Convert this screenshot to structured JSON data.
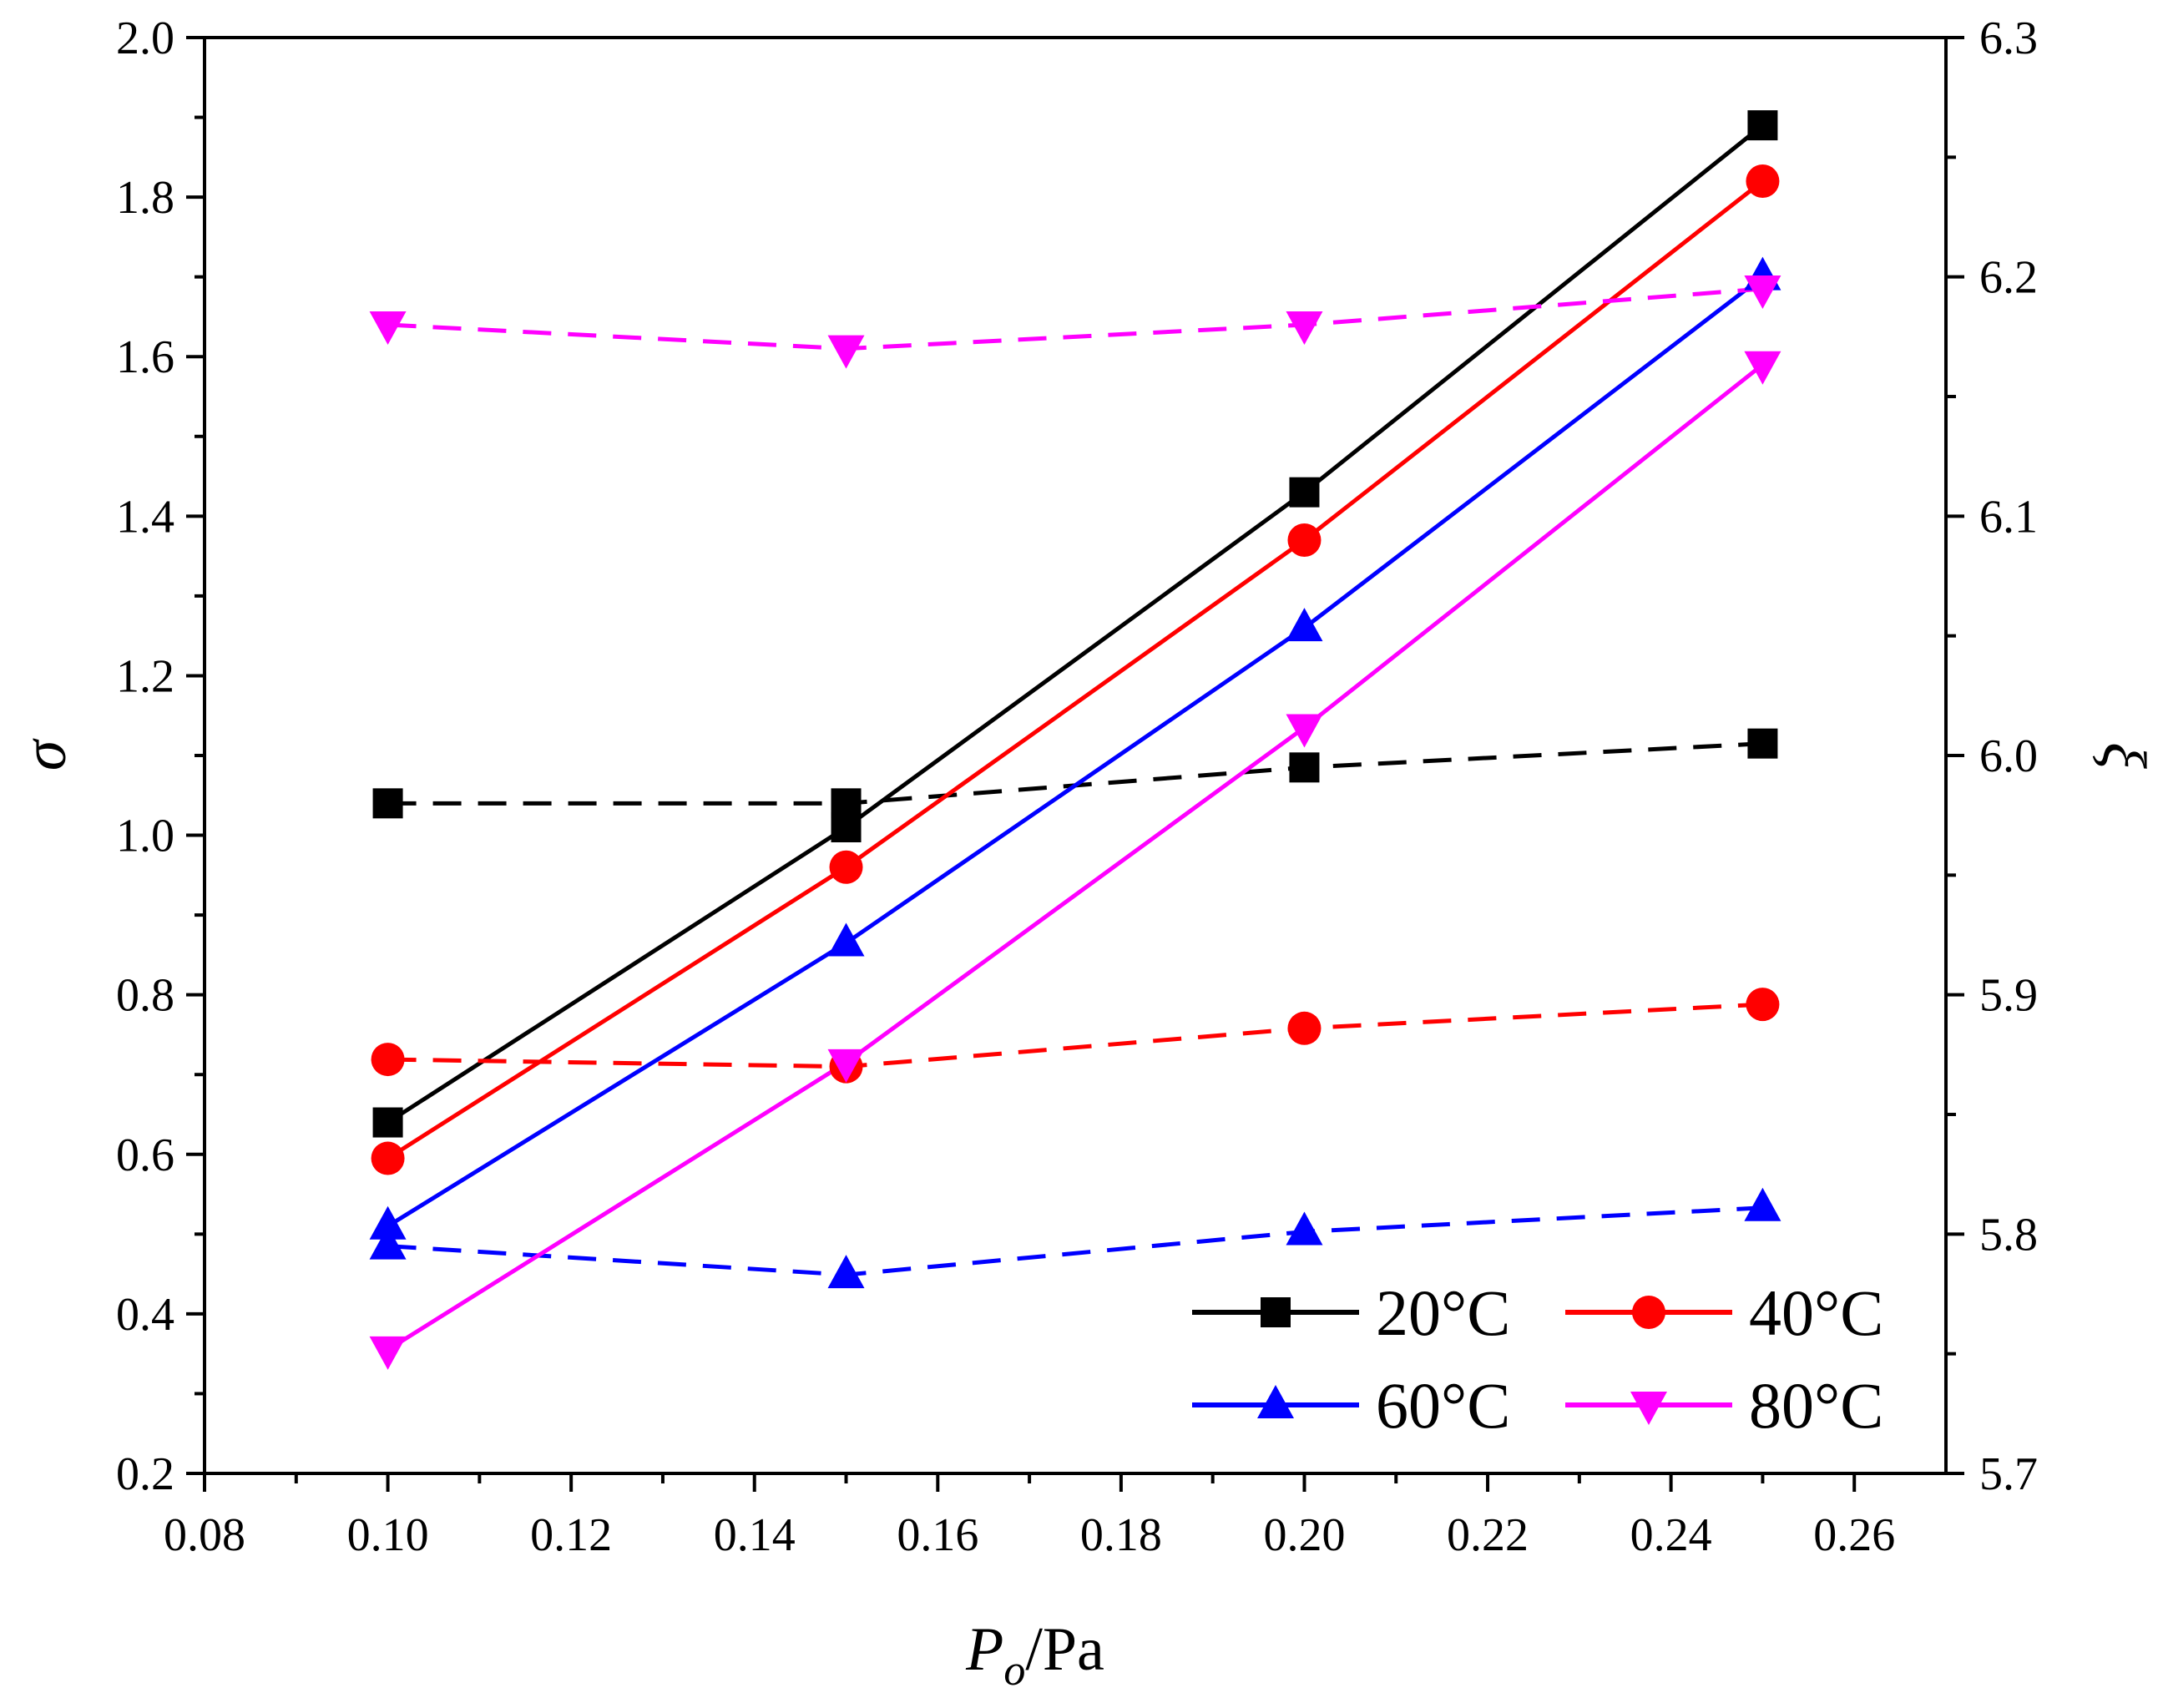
{
  "chart_data": {
    "type": "line",
    "x": [
      0.1,
      0.15,
      0.2,
      0.25
    ],
    "xlim": [
      0.08,
      0.27
    ],
    "x_ticks": [
      "0.08",
      "0.10",
      "0.12",
      "0.14",
      "0.16",
      "0.18",
      "0.20",
      "0.22",
      "0.24",
      "0.26"
    ],
    "x_tick_values": [
      0.08,
      0.1,
      0.12,
      0.14,
      0.16,
      0.18,
      0.2,
      0.22,
      0.24,
      0.26
    ],
    "xlabel_main": "P",
    "xlabel_sub": "o",
    "xlabel_rest": "/Pa",
    "y_left": {
      "label": "σ",
      "lim": [
        0.2,
        2.0
      ],
      "ticks": [
        "0.2",
        "0.4",
        "0.6",
        "0.8",
        "1.0",
        "1.2",
        "1.4",
        "1.6",
        "1.8",
        "2.0"
      ],
      "tick_values": [
        0.2,
        0.4,
        0.6,
        0.8,
        1.0,
        1.2,
        1.4,
        1.6,
        1.8,
        2.0
      ]
    },
    "y_right": {
      "label": "ξ",
      "lim": [
        5.7,
        6.3
      ],
      "ticks": [
        "5.7",
        "5.8",
        "5.9",
        "6.0",
        "6.1",
        "6.2",
        "6.3"
      ],
      "tick_values": [
        5.7,
        5.8,
        5.9,
        6.0,
        6.1,
        6.2,
        6.3
      ]
    },
    "grid": false,
    "legend_position": "bottom-right",
    "series": [
      {
        "name": "20°C",
        "color": "#000000",
        "marker": "square",
        "sigma": [
          0.64,
          1.01,
          1.43,
          1.89
        ],
        "xi": [
          5.98,
          5.98,
          5.995,
          6.005
        ]
      },
      {
        "name": "40°C",
        "color": "#ff0000",
        "marker": "circle",
        "sigma": [
          0.595,
          0.96,
          1.37,
          1.82
        ],
        "xi": [
          5.873,
          5.87,
          5.886,
          5.896
        ]
      },
      {
        "name": "60°C",
        "color": "#0000ff",
        "marker": "triangle-up",
        "sigma": [
          0.51,
          0.865,
          1.26,
          1.7
        ],
        "xi": [
          5.795,
          5.783,
          5.801,
          5.811
        ]
      },
      {
        "name": "80°C",
        "color": "#ff00ff",
        "marker": "triangle-down",
        "sigma": [
          0.355,
          0.715,
          1.135,
          1.59
        ],
        "xi": [
          6.18,
          6.17,
          6.18,
          6.195
        ]
      }
    ]
  }
}
